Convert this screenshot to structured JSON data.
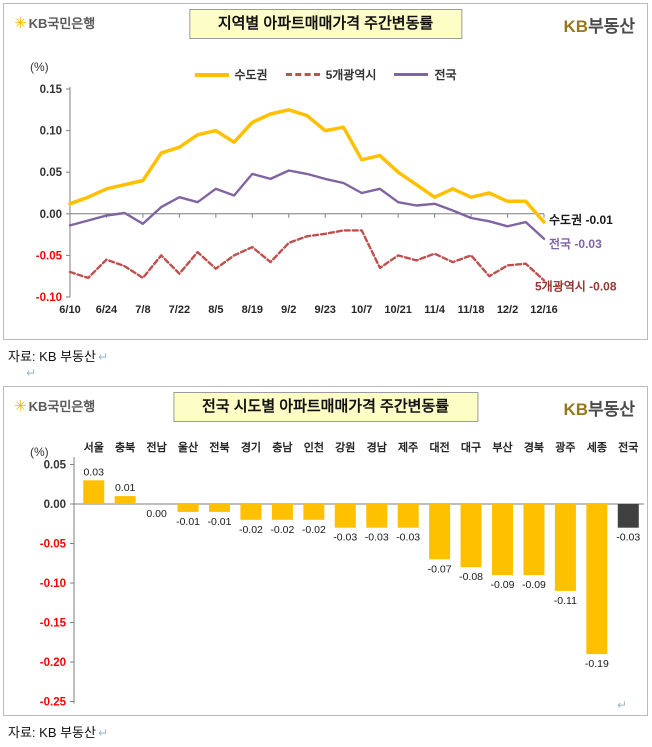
{
  "brand": {
    "star": "✳",
    "bank_name": "KB국민은행",
    "realty_kb": "KB",
    "realty_name": "부동산",
    "gold": "#F7B600"
  },
  "marks": {
    "pilcrow": "↵"
  },
  "colors": {
    "negative_tick": "#FF0000",
    "tick": "#333333",
    "axis": "#7F7F7F"
  },
  "panel1": {
    "title": "지역별 아파트매매가격 주간변동률",
    "unit": "(%)",
    "source": "자료: KB 부동산"
  },
  "panel2": {
    "title": "전국 시도별 아파트매매가격 주간변동률",
    "unit": "(%)",
    "source": "자료: KB 부동산"
  },
  "chart_data": [
    {
      "type": "line",
      "title": "지역별 아파트매매가격 주간변동률",
      "ylabel": "(%)",
      "ylim": [
        -0.1,
        0.15
      ],
      "yticks": [
        0.15,
        0.1,
        0.05,
        0.0,
        -0.05,
        -0.1
      ],
      "grid": false,
      "legend_position": "top",
      "x_tick_labels": [
        "6/10",
        "6/24",
        "7/8",
        "7/22",
        "8/5",
        "8/19",
        "9/2",
        "9/23",
        "10/7",
        "10/21",
        "11/4",
        "11/18",
        "12/2",
        "12/16"
      ],
      "series": [
        {
          "name": "수도권",
          "color": "#FFC000",
          "dash": "none",
          "last_value": -0.01,
          "values": [
            0.012,
            0.02,
            0.03,
            0.035,
            0.04,
            0.073,
            0.08,
            0.095,
            0.1,
            0.086,
            0.11,
            0.12,
            0.125,
            0.118,
            0.1,
            0.104,
            0.065,
            0.07,
            0.05,
            0.035,
            0.02,
            0.03,
            0.02,
            0.025,
            0.015,
            0.015,
            -0.01
          ]
        },
        {
          "name": "5개광역시",
          "color": "#C0504D",
          "dash": "5,3",
          "last_value": -0.08,
          "values": [
            -0.07,
            -0.077,
            -0.055,
            -0.063,
            -0.077,
            -0.05,
            -0.072,
            -0.046,
            -0.066,
            -0.05,
            -0.04,
            -0.058,
            -0.035,
            -0.027,
            -0.024,
            -0.02,
            -0.02,
            -0.065,
            -0.05,
            -0.056,
            -0.048,
            -0.058,
            -0.05,
            -0.075,
            -0.062,
            -0.06,
            -0.08
          ]
        },
        {
          "name": "전국",
          "color": "#8064A2",
          "dash": "none",
          "last_value": -0.03,
          "values": [
            -0.014,
            -0.008,
            -0.002,
            0.001,
            -0.012,
            0.008,
            0.02,
            0.014,
            0.03,
            0.022,
            0.048,
            0.042,
            0.052,
            0.048,
            0.042,
            0.037,
            0.025,
            0.03,
            0.014,
            0.01,
            0.012,
            0.004,
            -0.005,
            -0.009,
            -0.015,
            -0.01,
            -0.03
          ]
        }
      ],
      "end_labels": [
        {
          "text": "수도권 -0.01",
          "color": "#1a1a1a",
          "at_value": -0.01
        },
        {
          "text": "전국 -0.03",
          "color": "#8064A2",
          "at_value": -0.03
        },
        {
          "text": "5개광역시 -0.08",
          "color": "#943634",
          "at_value": -0.08
        }
      ]
    },
    {
      "type": "bar",
      "title": "전국 시도별 아파트매매가격 주간변동률",
      "ylabel": "(%)",
      "ylim": [
        -0.25,
        0.05
      ],
      "yticks": [
        0.05,
        0.0,
        -0.05,
        -0.1,
        -0.15,
        -0.2,
        -0.25
      ],
      "grid": false,
      "categories": [
        "서울",
        "충북",
        "전남",
        "울산",
        "전북",
        "경기",
        "충남",
        "인천",
        "강원",
        "경남",
        "제주",
        "대전",
        "대구",
        "부산",
        "경북",
        "광주",
        "세종",
        "전국"
      ],
      "values": [
        0.03,
        0.01,
        0.0,
        -0.01,
        -0.01,
        -0.02,
        -0.02,
        -0.02,
        -0.03,
        -0.03,
        -0.03,
        -0.07,
        -0.08,
        -0.09,
        -0.09,
        -0.11,
        -0.19,
        -0.03
      ],
      "bar_color": "#FFC000",
      "highlight_index": 17,
      "highlight_color": "#404040"
    }
  ]
}
